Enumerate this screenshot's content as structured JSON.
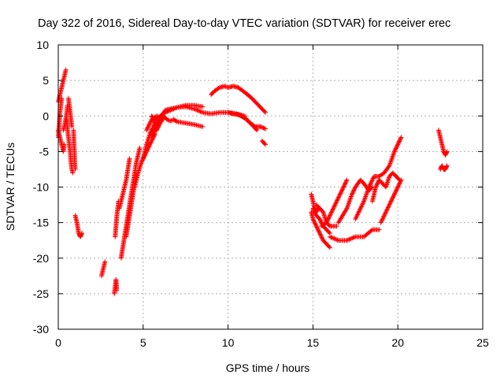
{
  "chart_data": {
    "type": "scatter",
    "title": "Day 322 of 2016, Sidereal Day-to-day VTEC variation (SDTVAR) for receiver erec",
    "xlabel": "GPS time / hours",
    "ylabel": "SDTVAR / TECUs",
    "xlim": [
      0,
      25
    ],
    "ylim": [
      -30,
      10
    ],
    "xticks": [
      0,
      5,
      10,
      15,
      20,
      25
    ],
    "yticks": [
      10,
      5,
      0,
      -5,
      -10,
      -15,
      -20,
      -25,
      -30
    ],
    "grid": true,
    "marker": "+",
    "colors": {
      "series": "#ff0000",
      "grid": "#b0b0b0",
      "axis": "#000000"
    },
    "series": [
      {
        "name": "SDTVAR",
        "tracks": [
          [
            [
              0.0,
              -2.0
            ],
            [
              0.1,
              -3.0
            ],
            [
              0.2,
              -4.0
            ],
            [
              0.3,
              -5.0
            ],
            [
              0.35,
              -4.0
            ]
          ],
          [
            [
              0.0,
              2.0
            ],
            [
              0.1,
              3.0
            ],
            [
              0.2,
              4.0
            ],
            [
              0.3,
              5.0
            ],
            [
              0.4,
              6.0
            ],
            [
              0.45,
              6.5
            ]
          ],
          [
            [
              0.0,
              -3.0
            ],
            [
              0.05,
              -1.5
            ],
            [
              0.1,
              0.5
            ],
            [
              0.15,
              1.5
            ],
            [
              0.2,
              2.5
            ]
          ],
          [
            [
              0.3,
              -2.0
            ],
            [
              0.4,
              -1.0
            ],
            [
              0.5,
              0.5
            ],
            [
              0.55,
              1.5
            ]
          ],
          [
            [
              0.5,
              -0.5
            ],
            [
              0.55,
              -2.0
            ],
            [
              0.6,
              -3.0
            ],
            [
              0.65,
              -4.0
            ],
            [
              0.7,
              -5.0
            ],
            [
              0.75,
              -6.5
            ],
            [
              0.8,
              -7.5
            ],
            [
              0.85,
              -8.0
            ]
          ],
          [
            [
              0.6,
              2.5
            ],
            [
              0.65,
              1.5
            ],
            [
              0.7,
              0.5
            ],
            [
              0.75,
              -0.5
            ],
            [
              0.8,
              -1.5
            ]
          ],
          [
            [
              0.9,
              -2.0
            ],
            [
              0.92,
              -3.5
            ],
            [
              0.95,
              -5.0
            ],
            [
              0.97,
              -6.5
            ],
            [
              1.0,
              -7.5
            ]
          ],
          [
            [
              1.0,
              -14.0
            ],
            [
              1.1,
              -15.0
            ],
            [
              1.2,
              -16.5
            ],
            [
              1.3,
              -17.0
            ],
            [
              1.4,
              -16.5
            ]
          ],
          [
            [
              2.55,
              -22.5
            ],
            [
              2.65,
              -21.5
            ],
            [
              2.75,
              -20.5
            ]
          ],
          [
            [
              3.3,
              -25.0
            ],
            [
              3.35,
              -24.0
            ],
            [
              3.4,
              -23.0
            ],
            [
              3.45,
              -24.5
            ]
          ],
          [
            [
              3.35,
              -17.0
            ],
            [
              3.4,
              -15.5
            ],
            [
              3.45,
              -14.0
            ],
            [
              3.5,
              -13.0
            ],
            [
              3.55,
              -12.0
            ]
          ],
          [
            [
              3.6,
              -13.0
            ],
            [
              3.7,
              -12.0
            ],
            [
              3.8,
              -11.0
            ],
            [
              3.9,
              -10.0
            ],
            [
              4.0,
              -9.0
            ],
            [
              4.1,
              -7.5
            ],
            [
              4.2,
              -6.0
            ]
          ],
          [
            [
              3.7,
              -20.0
            ],
            [
              3.8,
              -18.5
            ],
            [
              3.9,
              -17.0
            ],
            [
              4.0,
              -15.5
            ],
            [
              4.1,
              -14.0
            ],
            [
              4.2,
              -12.5
            ],
            [
              4.3,
              -11.0
            ],
            [
              4.4,
              -9.5
            ],
            [
              4.5,
              -8.0
            ],
            [
              4.6,
              -6.5
            ],
            [
              4.7,
              -5.5
            ],
            [
              4.8,
              -4.5
            ]
          ],
          [
            [
              4.0,
              -17.0
            ],
            [
              4.1,
              -15.5
            ],
            [
              4.2,
              -14.0
            ],
            [
              4.3,
              -12.5
            ],
            [
              4.4,
              -11.0
            ],
            [
              4.5,
              -9.5
            ],
            [
              4.6,
              -8.0
            ]
          ],
          [
            [
              4.5,
              -10.0
            ],
            [
              4.7,
              -8.0
            ],
            [
              4.9,
              -6.5
            ],
            [
              5.1,
              -5.5
            ],
            [
              5.3,
              -4.5
            ],
            [
              5.5,
              -3.5
            ],
            [
              5.7,
              -2.5
            ]
          ],
          [
            [
              5.0,
              -6.0
            ],
            [
              5.2,
              -4.0
            ],
            [
              5.4,
              -2.5
            ],
            [
              5.6,
              -1.5
            ],
            [
              5.8,
              -0.5
            ],
            [
              6.0,
              0.0
            ],
            [
              6.3,
              0.5
            ],
            [
              6.6,
              0.8
            ],
            [
              7.0,
              1.2
            ],
            [
              7.5,
              1.5
            ],
            [
              8.0,
              1.5
            ],
            [
              8.5,
              1.3
            ]
          ],
          [
            [
              5.5,
              -3.0
            ],
            [
              5.7,
              -2.0
            ],
            [
              5.9,
              -1.0
            ],
            [
              6.1,
              0.0
            ],
            [
              6.3,
              0.8
            ],
            [
              6.6,
              1.0
            ],
            [
              7.0,
              1.2
            ],
            [
              7.5,
              1.3
            ],
            [
              8.0,
              1.0
            ],
            [
              8.5,
              0.5
            ],
            [
              9.0,
              0.3
            ],
            [
              9.5,
              0.5
            ],
            [
              10.0,
              0.5
            ],
            [
              10.5,
              0.3
            ],
            [
              11.0,
              0.0
            ]
          ],
          [
            [
              5.8,
              -2.0
            ],
            [
              6.0,
              -1.0
            ],
            [
              6.2,
              0.0
            ],
            [
              6.4,
              -0.5
            ],
            [
              6.6,
              -0.7
            ],
            [
              6.8,
              -0.5
            ],
            [
              7.0,
              -0.8
            ],
            [
              7.5,
              -1.0
            ],
            [
              8.0,
              -1.2
            ],
            [
              8.5,
              -1.5
            ]
          ],
          [
            [
              5.2,
              -2.0
            ],
            [
              5.5,
              -0.5
            ],
            [
              5.8,
              0.0
            ],
            [
              6.0,
              -0.2
            ],
            [
              6.2,
              -0.5
            ]
          ],
          [
            [
              5.5,
              0.0
            ],
            [
              5.6,
              -0.3
            ],
            [
              5.7,
              -1.2
            ]
          ],
          [
            [
              9.0,
              3.0
            ],
            [
              9.2,
              3.5
            ],
            [
              9.5,
              4.0
            ],
            [
              9.8,
              4.2
            ],
            [
              10.0,
              4.0
            ],
            [
              10.3,
              4.2
            ],
            [
              10.6,
              4.0
            ],
            [
              11.0,
              3.3
            ],
            [
              11.4,
              2.5
            ],
            [
              11.8,
              1.5
            ],
            [
              12.2,
              0.5
            ]
          ],
          [
            [
              10.0,
              0.5
            ],
            [
              10.3,
              0.3
            ],
            [
              10.6,
              0.2
            ],
            [
              11.0,
              -0.3
            ],
            [
              11.3,
              -1.0
            ],
            [
              11.6,
              -1.5
            ],
            [
              11.9,
              -1.5
            ],
            [
              12.2,
              -1.8
            ]
          ],
          [
            [
              10.5,
              0.3
            ],
            [
              10.8,
              0.0
            ],
            [
              11.1,
              -0.5
            ],
            [
              11.4,
              -1.2
            ],
            [
              11.7,
              -2.0
            ]
          ],
          [
            [
              12.0,
              -3.5
            ],
            [
              12.2,
              -4.0
            ]
          ],
          [
            [
              14.9,
              -11.0
            ],
            [
              15.0,
              -12.0
            ],
            [
              15.1,
              -13.0
            ],
            [
              15.2,
              -13.5
            ],
            [
              15.3,
              -13.0
            ]
          ],
          [
            [
              14.9,
              -13.5
            ],
            [
              15.0,
              -14.5
            ],
            [
              15.2,
              -15.5
            ],
            [
              15.4,
              -16.5
            ],
            [
              15.6,
              -17.5
            ],
            [
              15.8,
              -18.0
            ],
            [
              16.0,
              -18.5
            ]
          ],
          [
            [
              15.0,
              -13.0
            ],
            [
              15.2,
              -14.0
            ],
            [
              15.4,
              -14.5
            ],
            [
              15.6,
              -15.5
            ],
            [
              15.8,
              -16.0
            ],
            [
              16.0,
              -16.5
            ]
          ],
          [
            [
              15.2,
              -12.5
            ],
            [
              15.4,
              -13.0
            ],
            [
              15.6,
              -13.5
            ],
            [
              15.8,
              -15.0
            ],
            [
              16.0,
              -15.5
            ],
            [
              16.2,
              -15.5
            ],
            [
              16.4,
              -15.5
            ]
          ],
          [
            [
              15.5,
              -15.5
            ],
            [
              15.8,
              -15.0
            ],
            [
              16.0,
              -14.0
            ],
            [
              16.3,
              -12.5
            ],
            [
              16.6,
              -11.0
            ],
            [
              16.8,
              -10.0
            ],
            [
              17.0,
              -9.0
            ]
          ],
          [
            [
              16.0,
              -17.0
            ],
            [
              16.5,
              -17.5
            ],
            [
              17.0,
              -17.5
            ],
            [
              17.5,
              -17.0
            ],
            [
              18.0,
              -17.0
            ],
            [
              18.5,
              -16.0
            ],
            [
              18.9,
              -16.0
            ]
          ],
          [
            [
              16.5,
              -15.0
            ],
            [
              17.0,
              -13.0
            ],
            [
              17.3,
              -11.0
            ],
            [
              17.5,
              -10.0
            ],
            [
              17.8,
              -9.0
            ],
            [
              18.0,
              -9.5
            ],
            [
              18.3,
              -10.5
            ],
            [
              18.5,
              -10.0
            ]
          ],
          [
            [
              17.5,
              -14.5
            ],
            [
              18.0,
              -12.0
            ],
            [
              18.3,
              -10.0
            ],
            [
              18.6,
              -8.5
            ],
            [
              18.9,
              -8.5
            ],
            [
              19.2,
              -8.0
            ],
            [
              19.5,
              -7.0
            ],
            [
              19.8,
              -5.0
            ],
            [
              20.0,
              -4.0
            ],
            [
              20.2,
              -3.0
            ]
          ],
          [
            [
              18.5,
              -12.0
            ],
            [
              18.7,
              -10.0
            ],
            [
              18.9,
              -9.0
            ],
            [
              19.1,
              -9.5
            ],
            [
              19.3,
              -10.0
            ],
            [
              19.5,
              -8.5
            ],
            [
              19.7,
              -8.0
            ],
            [
              19.9,
              -8.5
            ],
            [
              20.1,
              -9.0
            ]
          ],
          [
            [
              19.0,
              -15.0
            ],
            [
              19.3,
              -13.5
            ],
            [
              19.6,
              -12.0
            ],
            [
              19.8,
              -11.0
            ],
            [
              20.0,
              -10.0
            ],
            [
              20.2,
              -9.0
            ]
          ],
          [
            [
              22.4,
              -2.0
            ],
            [
              22.5,
              -3.0
            ],
            [
              22.6,
              -4.0
            ],
            [
              22.7,
              -5.0
            ],
            [
              22.8,
              -5.5
            ],
            [
              22.9,
              -5.0
            ]
          ],
          [
            [
              22.5,
              -7.5
            ],
            [
              22.6,
              -7.0
            ],
            [
              22.7,
              -7.5
            ],
            [
              22.8,
              -7.5
            ],
            [
              22.9,
              -7.0
            ]
          ]
        ]
      }
    ]
  }
}
